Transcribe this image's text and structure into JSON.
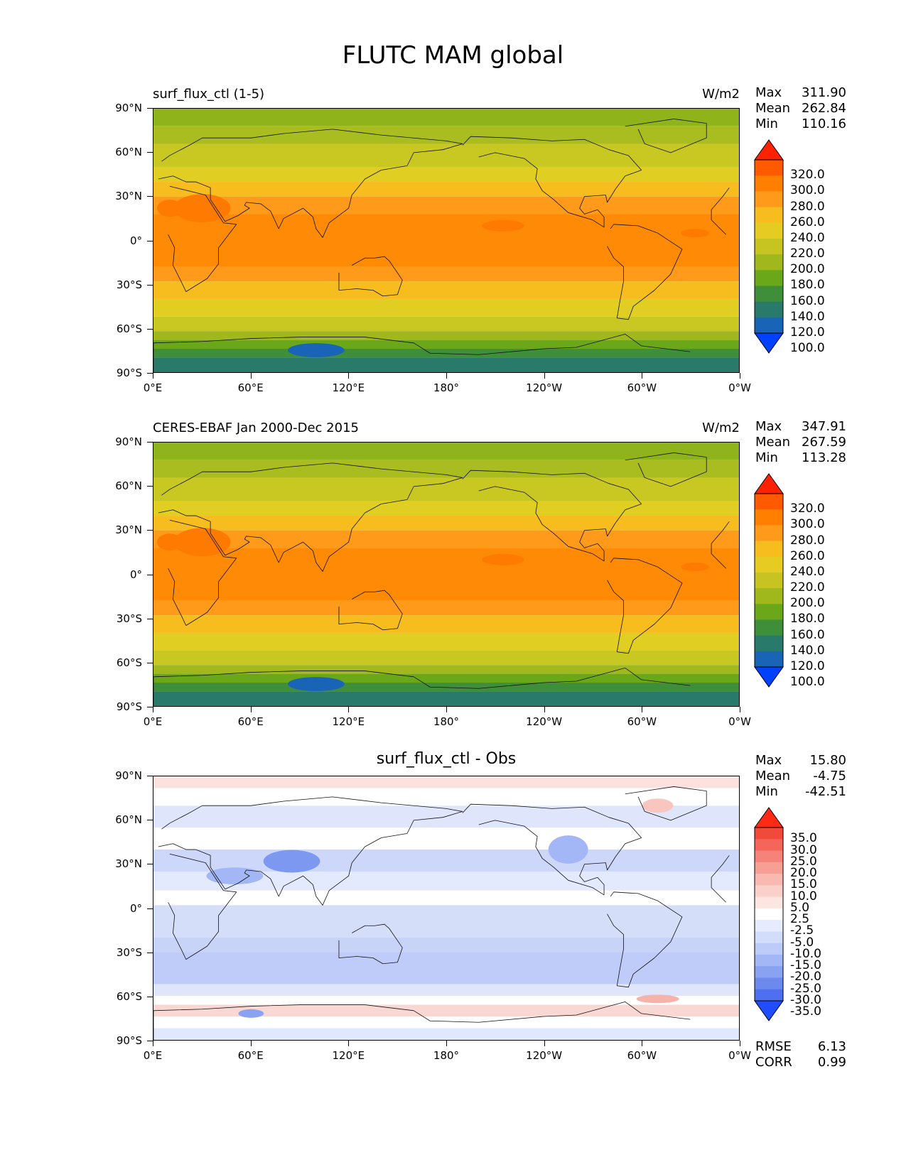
{
  "title": "FLUTC MAM global",
  "x_ticks": [
    "0°E",
    "60°E",
    "120°E",
    "180°",
    "120°W",
    "60°W",
    "0°W"
  ],
  "y_ticks": [
    "90°N",
    "60°N",
    "30°N",
    "0°",
    "30°S",
    "60°S",
    "90°S"
  ],
  "panels": [
    {
      "title": "surf_flux_ctl (1-5)",
      "units": "W/m2",
      "stats": {
        "max_label": "Max",
        "max": "311.90",
        "mean_label": "Mean",
        "mean": "262.84",
        "min_label": "Min",
        "min": "110.16"
      },
      "colorbar": {
        "labels": [
          "320.0",
          "300.0",
          "280.0",
          "260.0",
          "240.0",
          "220.0",
          "200.0",
          "180.0",
          "160.0",
          "140.0",
          "120.0",
          "100.0"
        ],
        "colors": [
          "#ff2200",
          "#ff5a00",
          "#ff7f00",
          "#ff9a1a",
          "#f7bd1e",
          "#e6cc22",
          "#c7c320",
          "#a1b81c",
          "#6aa81a",
          "#3f8f3a",
          "#2a7a6c",
          "#1a64b8",
          "#0040ff"
        ]
      }
    },
    {
      "title": "CERES-EBAF Jan 2000-Dec 2015",
      "units": "W/m2",
      "stats": {
        "max_label": "Max",
        "max": "347.91",
        "mean_label": "Mean",
        "mean": "267.59",
        "min_label": "Min",
        "min": "113.28"
      },
      "colorbar": {
        "labels": [
          "320.0",
          "300.0",
          "280.0",
          "260.0",
          "240.0",
          "220.0",
          "200.0",
          "180.0",
          "160.0",
          "140.0",
          "120.0",
          "100.0"
        ],
        "colors": [
          "#ff2200",
          "#ff5a00",
          "#ff7f00",
          "#ff9a1a",
          "#f7bd1e",
          "#e6cc22",
          "#c7c320",
          "#a1b81c",
          "#6aa81a",
          "#3f8f3a",
          "#2a7a6c",
          "#1a64b8",
          "#0040ff"
        ]
      }
    },
    {
      "title": "surf_flux_ctl - Obs",
      "stats": {
        "max_label": "Max",
        "max": "15.80",
        "mean_label": "Mean",
        "mean": "-4.75",
        "min_label": "Min",
        "min": "-42.51"
      },
      "colorbar": {
        "labels": [
          "35.0",
          "30.0",
          "25.0",
          "20.0",
          "15.0",
          "10.0",
          "5.0",
          "2.5",
          "-2.5",
          "-5.0",
          "-10.0",
          "-15.0",
          "-20.0",
          "-25.0",
          "-30.0",
          "-35.0"
        ],
        "colors": [
          "#ff2a14",
          "#f24a3a",
          "#f4665a",
          "#f5837a",
          "#f79e95",
          "#f9b8b0",
          "#fbd0ca",
          "#fde6e2",
          "#ffffff",
          "#e6ebfd",
          "#d2dcfb",
          "#bccbf8",
          "#a3b6f5",
          "#8aa2f2",
          "#6c89ee",
          "#4d6ff0",
          "#1f4dff"
        ]
      },
      "error_stats": {
        "rmse_label": "RMSE",
        "rmse": "6.13",
        "corr_label": "CORR",
        "corr": "0.99"
      }
    }
  ]
}
